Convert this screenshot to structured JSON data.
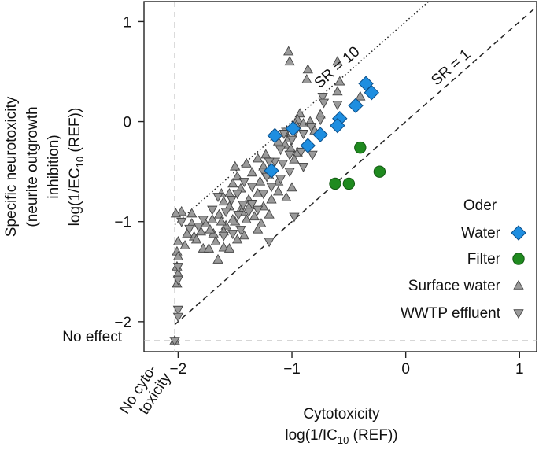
{
  "chart_data": {
    "type": "scatter",
    "xlabel": "Cytotoxicity",
    "xlabel_line2_prefix": "log(1/IC",
    "xlabel_line2_sub": "10",
    "xlabel_line2_suffix": " (REF))",
    "ylabel_lines": [
      "Specific neurotoxicity",
      "(neurite outgrowth",
      "inhibition)"
    ],
    "ylabel_line4_prefix": "log(1/EC",
    "ylabel_line4_sub": "10",
    "ylabel_line4_suffix": " (REF))",
    "xlim": [
      -2.3,
      1.15
    ],
    "ylim": [
      -2.3,
      1.2
    ],
    "x_ticks": [
      -2,
      -1,
      0,
      1
    ],
    "x_tick_labels": [
      "−2",
      "−1",
      "0",
      "1"
    ],
    "y_ticks": [
      -2,
      -1,
      0,
      1
    ],
    "y_tick_labels": [
      "−2",
      "−1",
      "0",
      "1"
    ],
    "no_effect_label": "No effect",
    "no_effect_y": -2.19,
    "no_cyto_label_line1": "No cyto-",
    "no_cyto_label_line2": "toxicity",
    "no_cyto_x": -2.03,
    "reference_lines": [
      {
        "label": "SR = 10",
        "offset": 1,
        "style": "dotted"
      },
      {
        "label": "SR = 1",
        "offset": 0,
        "style": "dashed"
      }
    ],
    "legend": {
      "title": "Oder",
      "position": "right",
      "entries": [
        {
          "label": "Water",
          "marker": "diamond",
          "color": "#1e8ee0"
        },
        {
          "label": "Filter",
          "marker": "circle",
          "color": "#1f8a1f"
        },
        {
          "label": "Surface water",
          "marker": "triangle-up",
          "color": "#9a9a9a"
        },
        {
          "label": "WWTP effluent",
          "marker": "triangle-down",
          "color": "#9a9a9a"
        }
      ]
    },
    "series": [
      {
        "name": "Water",
        "marker": "diamond",
        "color": "#1e8ee0",
        "points": [
          [
            -0.35,
            0.38
          ],
          [
            -0.3,
            0.29
          ],
          [
            -0.44,
            0.16
          ],
          [
            -0.58,
            0.03
          ],
          [
            -0.6,
            -0.04
          ],
          [
            -1.15,
            -0.14
          ],
          [
            -0.99,
            -0.07
          ],
          [
            -0.86,
            -0.24
          ],
          [
            -0.75,
            -0.13
          ],
          [
            -1.18,
            -0.49
          ]
        ]
      },
      {
        "name": "Filter",
        "marker": "circle",
        "color": "#1f8a1f",
        "points": [
          [
            -0.4,
            -0.26
          ],
          [
            -0.23,
            -0.5
          ],
          [
            -0.5,
            -0.62
          ],
          [
            -0.62,
            -0.62
          ]
        ]
      },
      {
        "name": "Surface water",
        "marker": "triangle-up",
        "color": "#9a9a9a",
        "points": [
          [
            -1.03,
            0.7
          ],
          [
            -1.02,
            0.6
          ],
          [
            -0.6,
            0.6
          ],
          [
            -0.87,
            0.42
          ],
          [
            -0.86,
            0.52
          ],
          [
            -0.58,
            0.4
          ],
          [
            -0.6,
            0.3
          ],
          [
            -0.4,
            0.25
          ],
          [
            -0.93,
            0.08
          ],
          [
            -0.95,
            0.02
          ],
          [
            -0.96,
            -0.04
          ],
          [
            -0.9,
            -0.02
          ],
          [
            -0.84,
            0.0
          ],
          [
            -0.8,
            -0.09
          ],
          [
            -0.75,
            0.07
          ],
          [
            -1.03,
            -0.17
          ],
          [
            -1.06,
            -0.23
          ],
          [
            -1.12,
            -0.2
          ],
          [
            -1.01,
            -0.27
          ],
          [
            -0.95,
            -0.31
          ],
          [
            -0.98,
            -0.38
          ],
          [
            -1.23,
            -0.33
          ],
          [
            -1.3,
            -0.37
          ],
          [
            -1.25,
            -0.45
          ],
          [
            -1.2,
            -0.54
          ],
          [
            -1.28,
            -0.6
          ],
          [
            -1.35,
            -0.51
          ],
          [
            -1.4,
            -0.42
          ],
          [
            -1.5,
            -0.45
          ],
          [
            -1.48,
            -0.55
          ],
          [
            -1.45,
            -0.67
          ],
          [
            -1.52,
            -0.62
          ],
          [
            -1.55,
            -0.72
          ],
          [
            -1.62,
            -0.72
          ],
          [
            -1.6,
            -0.8
          ],
          [
            -1.55,
            -0.85
          ],
          [
            -1.45,
            -0.88
          ],
          [
            -1.37,
            -0.84
          ],
          [
            -1.33,
            -0.95
          ],
          [
            -1.4,
            -0.98
          ],
          [
            -1.5,
            -1.0
          ],
          [
            -1.58,
            -1.04
          ],
          [
            -1.64,
            -0.93
          ],
          [
            -1.7,
            -0.98
          ],
          [
            -1.76,
            -1.02
          ],
          [
            -1.69,
            -1.12
          ],
          [
            -1.6,
            -1.1
          ],
          [
            -1.67,
            -1.2
          ],
          [
            -1.8,
            -1.1
          ],
          [
            -1.86,
            -1.15
          ],
          [
            -1.88,
            -1.02
          ],
          [
            -1.92,
            -1.12
          ],
          [
            -1.78,
            -1.27
          ],
          [
            -1.73,
            -1.27
          ],
          [
            -1.65,
            -1.38
          ],
          [
            -1.6,
            -1.26
          ],
          [
            -1.55,
            -1.27
          ],
          [
            -1.48,
            -1.18
          ],
          [
            -1.42,
            -1.14
          ],
          [
            -1.3,
            -1.08
          ],
          [
            -1.27,
            -1.02
          ],
          [
            -1.2,
            -0.93
          ],
          [
            -1.25,
            -0.85
          ],
          [
            -1.18,
            -0.78
          ],
          [
            -1.12,
            -0.7
          ],
          [
            -1.05,
            -0.76
          ],
          [
            -1.0,
            -0.66
          ],
          [
            -1.12,
            -0.6
          ],
          [
            -1.3,
            -0.72
          ],
          [
            -1.38,
            -0.78
          ],
          [
            -1.44,
            -0.9
          ],
          [
            -1.52,
            -0.98
          ],
          [
            -1.62,
            -1.0
          ],
          [
            -1.72,
            -1.08
          ],
          [
            -1.84,
            -1.18
          ],
          [
            -1.94,
            -1.24
          ],
          [
            -1.97,
            -0.9
          ],
          [
            -2.02,
            -0.92
          ],
          [
            -1.88,
            -0.92
          ],
          [
            -2.0,
            -1.2
          ],
          [
            -2.01,
            -1.3
          ],
          [
            -2.0,
            -1.35
          ],
          [
            -2.01,
            -1.45
          ],
          [
            -2.0,
            -1.52
          ],
          [
            -2.01,
            -1.62
          ]
        ]
      },
      {
        "name": "WWTP effluent",
        "marker": "triangle-down",
        "color": "#9a9a9a",
        "points": [
          [
            -0.73,
            0.25
          ],
          [
            -0.72,
            0.19
          ],
          [
            -0.75,
            0.02
          ],
          [
            -0.83,
            -0.05
          ],
          [
            -0.9,
            -0.12
          ],
          [
            -0.97,
            -0.1
          ],
          [
            -1.05,
            -0.1
          ],
          [
            -1.1,
            -0.28
          ],
          [
            -1.02,
            -0.33
          ],
          [
            -1.08,
            -0.42
          ],
          [
            -1.15,
            -0.4
          ],
          [
            -1.2,
            -0.4
          ],
          [
            -1.25,
            -0.5
          ],
          [
            -1.35,
            -0.65
          ],
          [
            -1.42,
            -0.6
          ],
          [
            -1.48,
            -0.72
          ],
          [
            -1.53,
            -0.78
          ],
          [
            -1.58,
            -0.9
          ],
          [
            -1.47,
            -0.93
          ],
          [
            -1.43,
            -0.83
          ],
          [
            -1.35,
            -0.82
          ],
          [
            -1.25,
            -0.72
          ],
          [
            -1.18,
            -0.65
          ],
          [
            -1.1,
            -0.57
          ],
          [
            -1.02,
            -0.5
          ],
          [
            -0.9,
            -0.45
          ],
          [
            -0.82,
            -0.33
          ],
          [
            -0.92,
            -0.3
          ],
          [
            -1.0,
            -0.18
          ],
          [
            -1.07,
            -0.12
          ],
          [
            -1.22,
            -0.55
          ],
          [
            -1.3,
            -0.88
          ],
          [
            -1.38,
            -0.9
          ],
          [
            -1.45,
            -1.08
          ],
          [
            -1.52,
            -1.12
          ],
          [
            -1.6,
            -1.14
          ],
          [
            -1.65,
            -0.75
          ],
          [
            -1.7,
            -0.88
          ],
          [
            -1.78,
            -0.98
          ],
          [
            -1.82,
            -1.05
          ],
          [
            -1.9,
            -1.07
          ],
          [
            -1.97,
            -1.0
          ],
          [
            -2.0,
            -1.45
          ],
          [
            -2.0,
            -1.58
          ],
          [
            -2.0,
            -1.88
          ],
          [
            -2.0,
            -1.95
          ],
          [
            -1.2,
            -1.2
          ],
          [
            -0.98,
            -0.95
          ],
          [
            -0.6,
            0.17
          ]
        ]
      }
    ]
  }
}
